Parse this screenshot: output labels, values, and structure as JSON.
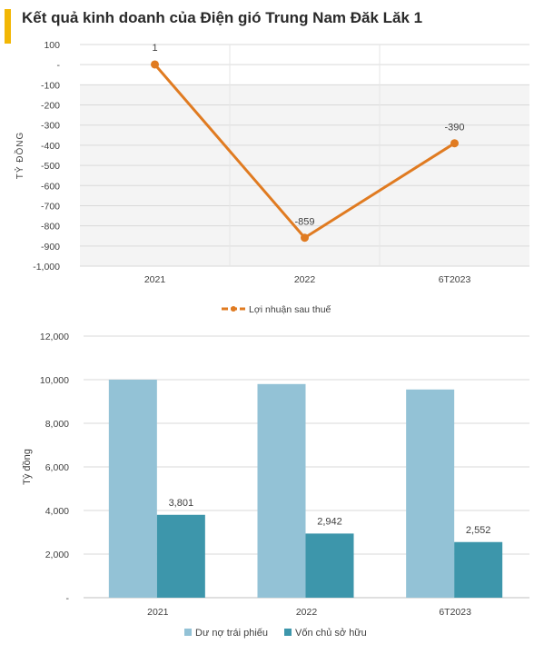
{
  "page": {
    "title": "Kết quả kinh doanh của Điện gió Trung Nam Đăk Lăk 1"
  },
  "colors": {
    "accent": "#f2b705",
    "line": "#e07b21",
    "bond_debt": "#93c2d6",
    "equity": "#3d96ab"
  },
  "chart_data": [
    {
      "type": "line",
      "categories": [
        "2021",
        "2022",
        "6T2023"
      ],
      "ylabel": "TỶ ĐỒNG",
      "ylim": [
        -1000,
        100
      ],
      "ytick_labels": [
        "100",
        "-",
        "-100",
        "-200",
        "-300",
        "-400",
        "-500",
        "-600",
        "-700",
        "-800",
        "-900",
        "-1,000"
      ],
      "ytick_values": [
        100,
        0,
        -100,
        -200,
        -300,
        -400,
        -500,
        -600,
        -700,
        -800,
        -900,
        -1000
      ],
      "grid": true,
      "legend": "bottom",
      "series": [
        {
          "name": "Lợi nhuận sau thuế",
          "values": [
            1,
            -859,
            -390
          ],
          "labels": [
            "1",
            "-859",
            "-390"
          ],
          "color": "#e07b21"
        }
      ]
    },
    {
      "type": "bar",
      "categories": [
        "2021",
        "2022",
        "6T2023"
      ],
      "ylabel": "Tỷ đồng",
      "ylim": [
        0,
        12000
      ],
      "ytick_labels": [
        "-",
        "2,000",
        "4,000",
        "6,000",
        "8,000",
        "10,000",
        "12,000"
      ],
      "ytick_values": [
        0,
        2000,
        4000,
        6000,
        8000,
        10000,
        12000
      ],
      "grid": true,
      "legend": "bottom",
      "series": [
        {
          "name": "Dư nợ trái phiếu",
          "values": [
            10000,
            9800,
            9550
          ],
          "labels": [
            "",
            "",
            ""
          ],
          "color": "#93c2d6"
        },
        {
          "name": "Vốn chủ sở hữu",
          "values": [
            3801,
            2942,
            2552
          ],
          "labels": [
            "3,801",
            "2,942",
            "2,552"
          ],
          "color": "#3d96ab"
        }
      ]
    }
  ]
}
